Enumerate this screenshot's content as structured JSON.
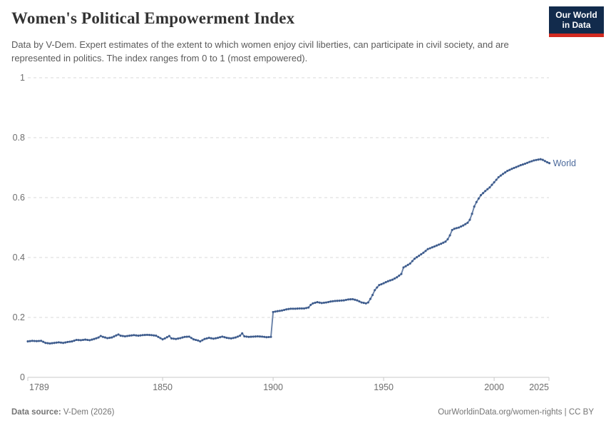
{
  "header": {
    "title": "Women's Political Empowerment Index",
    "subtitle": "Data by V-Dem. Expert estimates of the extent to which women enjoy civil liberties, can participate in civil society, and are represented in politics. The index ranges from 0 to 1 (most empowered).",
    "logo": {
      "line1": "Our World",
      "line2": "in Data",
      "bg_color": "#122b4c",
      "bar_color": "#d22a20"
    }
  },
  "chart_data": {
    "type": "line",
    "title": "Women's Political Empowerment Index",
    "xlabel": "",
    "ylabel": "",
    "xlim": [
      1789,
      2025
    ],
    "ylim": [
      0,
      1
    ],
    "x_ticks": [
      1789,
      1850,
      1900,
      1950,
      2000,
      2025
    ],
    "y_ticks": [
      0,
      0.2,
      0.4,
      0.6,
      0.8,
      1
    ],
    "grid": "horizontal-dashed",
    "legend_position": "end-of-line-label",
    "colors": {
      "line": "#6a82a8",
      "marker": "#3e5c8d",
      "label": "#4c6a9c",
      "gridline": "#dadada",
      "axis": "#c8c8c8",
      "tick_text": "#6e6e6e"
    },
    "series": [
      {
        "name": "World",
        "points": [
          [
            1789,
            0.12
          ],
          [
            1791,
            0.122
          ],
          [
            1793,
            0.121
          ],
          [
            1795,
            0.122
          ],
          [
            1797,
            0.115
          ],
          [
            1799,
            0.113
          ],
          [
            1801,
            0.115
          ],
          [
            1803,
            0.117
          ],
          [
            1805,
            0.115
          ],
          [
            1807,
            0.118
          ],
          [
            1809,
            0.12
          ],
          [
            1811,
            0.125
          ],
          [
            1813,
            0.124
          ],
          [
            1815,
            0.126
          ],
          [
            1817,
            0.124
          ],
          [
            1819,
            0.128
          ],
          [
            1821,
            0.133
          ],
          [
            1822,
            0.138
          ],
          [
            1823,
            0.135
          ],
          [
            1825,
            0.131
          ],
          [
            1827,
            0.133
          ],
          [
            1829,
            0.14
          ],
          [
            1830,
            0.143
          ],
          [
            1831,
            0.139
          ],
          [
            1833,
            0.137
          ],
          [
            1835,
            0.139
          ],
          [
            1837,
            0.141
          ],
          [
            1839,
            0.139
          ],
          [
            1841,
            0.141
          ],
          [
            1843,
            0.142
          ],
          [
            1845,
            0.141
          ],
          [
            1847,
            0.139
          ],
          [
            1849,
            0.131
          ],
          [
            1850,
            0.127
          ],
          [
            1851,
            0.13
          ],
          [
            1853,
            0.138
          ],
          [
            1854,
            0.13
          ],
          [
            1856,
            0.128
          ],
          [
            1858,
            0.131
          ],
          [
            1860,
            0.135
          ],
          [
            1862,
            0.136
          ],
          [
            1864,
            0.127
          ],
          [
            1866,
            0.123
          ],
          [
            1867,
            0.12
          ],
          [
            1869,
            0.128
          ],
          [
            1871,
            0.132
          ],
          [
            1873,
            0.129
          ],
          [
            1875,
            0.132
          ],
          [
            1877,
            0.136
          ],
          [
            1879,
            0.132
          ],
          [
            1881,
            0.13
          ],
          [
            1883,
            0.133
          ],
          [
            1885,
            0.139
          ],
          [
            1886,
            0.147
          ],
          [
            1887,
            0.137
          ],
          [
            1889,
            0.135
          ],
          [
            1891,
            0.136
          ],
          [
            1893,
            0.137
          ],
          [
            1895,
            0.136
          ],
          [
            1897,
            0.134
          ],
          [
            1899,
            0.135
          ],
          [
            1900,
            0.218
          ],
          [
            1902,
            0.221
          ],
          [
            1904,
            0.223
          ],
          [
            1906,
            0.227
          ],
          [
            1908,
            0.229
          ],
          [
            1910,
            0.229
          ],
          [
            1912,
            0.23
          ],
          [
            1914,
            0.23
          ],
          [
            1916,
            0.233
          ],
          [
            1917,
            0.242
          ],
          [
            1918,
            0.247
          ],
          [
            1920,
            0.251
          ],
          [
            1922,
            0.248
          ],
          [
            1924,
            0.25
          ],
          [
            1926,
            0.253
          ],
          [
            1928,
            0.255
          ],
          [
            1930,
            0.256
          ],
          [
            1932,
            0.257
          ],
          [
            1934,
            0.26
          ],
          [
            1936,
            0.261
          ],
          [
            1938,
            0.257
          ],
          [
            1940,
            0.25
          ],
          [
            1942,
            0.247
          ],
          [
            1943,
            0.25
          ],
          [
            1944,
            0.262
          ],
          [
            1945,
            0.275
          ],
          [
            1946,
            0.291
          ],
          [
            1947,
            0.3
          ],
          [
            1948,
            0.308
          ],
          [
            1950,
            0.314
          ],
          [
            1952,
            0.321
          ],
          [
            1954,
            0.326
          ],
          [
            1956,
            0.334
          ],
          [
            1958,
            0.345
          ],
          [
            1959,
            0.367
          ],
          [
            1960,
            0.371
          ],
          [
            1962,
            0.38
          ],
          [
            1964,
            0.396
          ],
          [
            1966,
            0.406
          ],
          [
            1968,
            0.416
          ],
          [
            1970,
            0.428
          ],
          [
            1972,
            0.434
          ],
          [
            1974,
            0.44
          ],
          [
            1976,
            0.446
          ],
          [
            1978,
            0.453
          ],
          [
            1979,
            0.461
          ],
          [
            1980,
            0.474
          ],
          [
            1981,
            0.492
          ],
          [
            1982,
            0.496
          ],
          [
            1984,
            0.5
          ],
          [
            1986,
            0.507
          ],
          [
            1988,
            0.516
          ],
          [
            1989,
            0.526
          ],
          [
            1990,
            0.546
          ],
          [
            1991,
            0.57
          ],
          [
            1992,
            0.585
          ],
          [
            1993,
            0.597
          ],
          [
            1994,
            0.608
          ],
          [
            1995,
            0.615
          ],
          [
            1996,
            0.622
          ],
          [
            1998,
            0.634
          ],
          [
            2000,
            0.651
          ],
          [
            2002,
            0.668
          ],
          [
            2004,
            0.679
          ],
          [
            2006,
            0.689
          ],
          [
            2008,
            0.696
          ],
          [
            2010,
            0.702
          ],
          [
            2012,
            0.708
          ],
          [
            2014,
            0.713
          ],
          [
            2016,
            0.719
          ],
          [
            2018,
            0.724
          ],
          [
            2020,
            0.727
          ],
          [
            2021,
            0.728
          ],
          [
            2022,
            0.726
          ],
          [
            2023,
            0.722
          ],
          [
            2024,
            0.718
          ],
          [
            2025,
            0.715
          ]
        ]
      }
    ]
  },
  "footer": {
    "source_prefix": "Data source:",
    "source_text": " V-Dem (2026)",
    "right_text": "OurWorldinData.org/women-rights | CC BY"
  }
}
